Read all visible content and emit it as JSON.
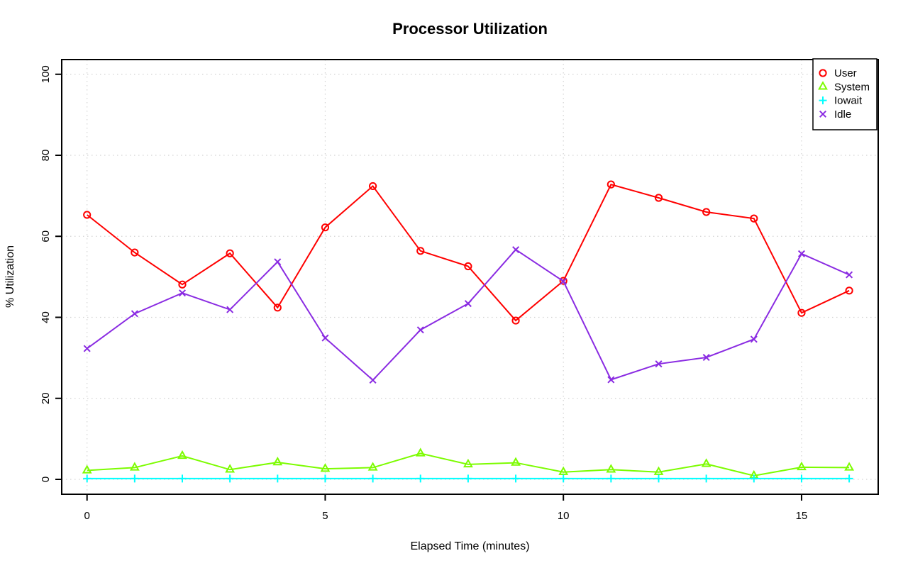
{
  "chart_data": {
    "type": "line",
    "title": "Processor Utilization",
    "xlabel": "Elapsed Time (minutes)",
    "ylabel": "% Utilization",
    "x": [
      0,
      1,
      2,
      3,
      4,
      5,
      6,
      7,
      8,
      9,
      10,
      11,
      12,
      13,
      14,
      15,
      16
    ],
    "xticks": [
      0,
      5,
      10,
      15
    ],
    "yticks": [
      0,
      20,
      40,
      60,
      80,
      100
    ],
    "xlim": [
      -0.55,
      16.6
    ],
    "ylim": [
      -3.7,
      103.6
    ],
    "grid": true,
    "grid_style": "dotted",
    "grid_color": "#d3d3d3",
    "legend_position": "top-right",
    "series": [
      {
        "name": "User",
        "color": "#ff0000",
        "marker": "circle",
        "values": [
          65.3,
          56.0,
          48.1,
          55.8,
          42.4,
          62.2,
          72.4,
          56.4,
          52.6,
          39.2,
          49.0,
          72.8,
          69.5,
          66.0,
          64.4,
          41.1,
          46.6
        ]
      },
      {
        "name": "System",
        "color": "#7cfc00",
        "marker": "triangle",
        "values": [
          2.2,
          2.9,
          5.8,
          2.4,
          4.2,
          2.6,
          2.9,
          6.4,
          3.7,
          4.1,
          1.8,
          2.4,
          1.8,
          3.8,
          0.9,
          3.0,
          2.9
        ]
      },
      {
        "name": "Iowait",
        "color": "#00ffff",
        "marker": "plus",
        "values": [
          0.2,
          0.2,
          0.2,
          0.2,
          0.2,
          0.2,
          0.2,
          0.2,
          0.2,
          0.2,
          0.2,
          0.2,
          0.2,
          0.2,
          0.2,
          0.2,
          0.2
        ]
      },
      {
        "name": "Idle",
        "color": "#8a2be2",
        "marker": "x",
        "values": [
          32.3,
          40.9,
          46.0,
          41.9,
          53.7,
          34.9,
          24.5,
          36.9,
          43.4,
          56.7,
          48.9,
          24.6,
          28.5,
          30.1,
          34.6,
          55.7,
          50.5
        ]
      }
    ]
  }
}
